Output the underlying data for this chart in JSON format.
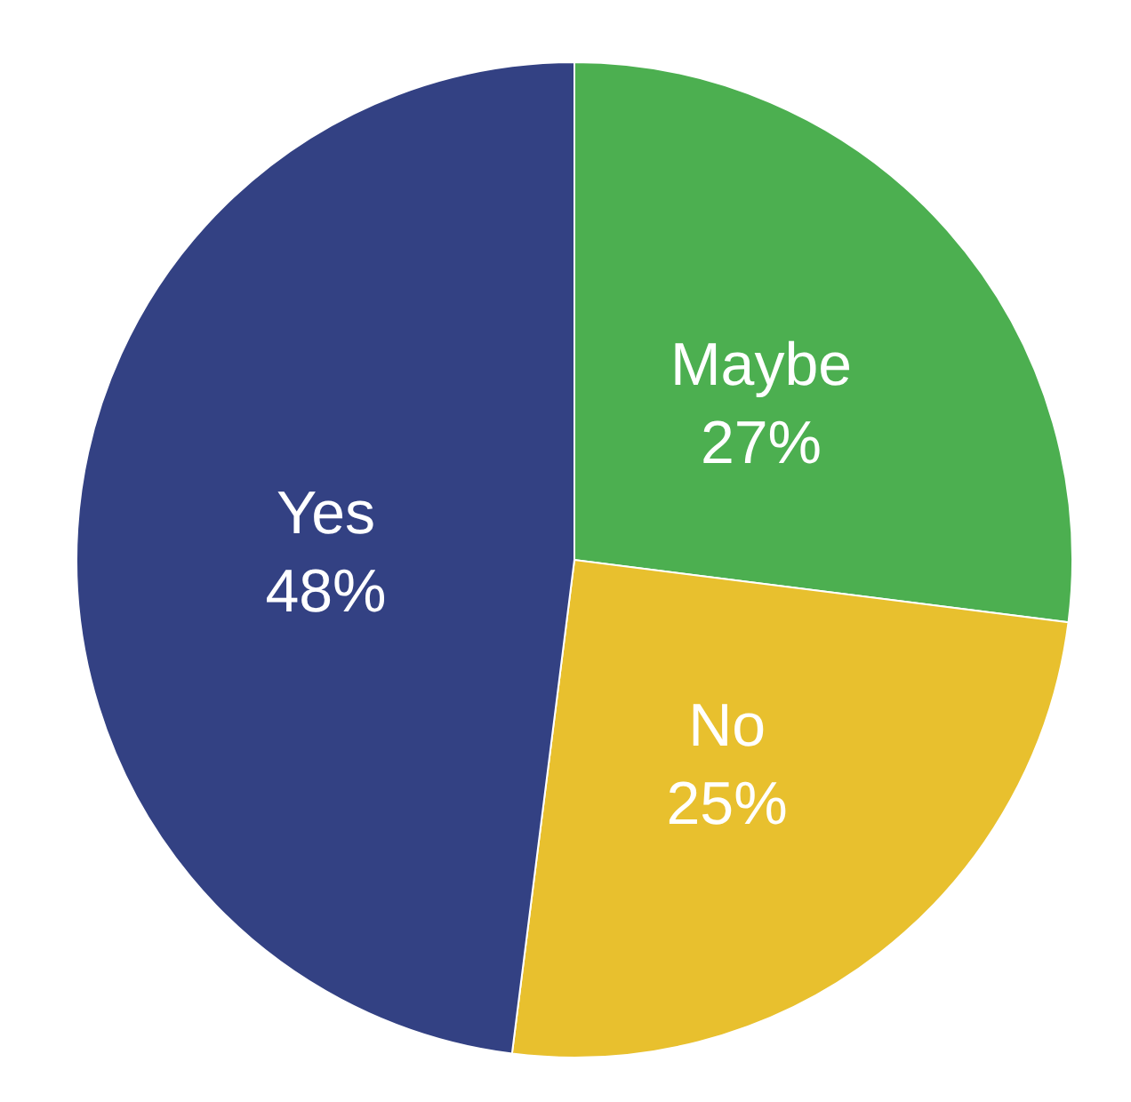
{
  "chart_data": {
    "type": "pie",
    "categories": [
      "Maybe",
      "No",
      "Yes"
    ],
    "values": [
      27,
      25,
      48
    ],
    "value_labels": [
      "27%",
      "25%",
      "48%"
    ],
    "colors": [
      "#4caf50",
      "#e8c02e",
      "#334183"
    ],
    "legend": false
  }
}
